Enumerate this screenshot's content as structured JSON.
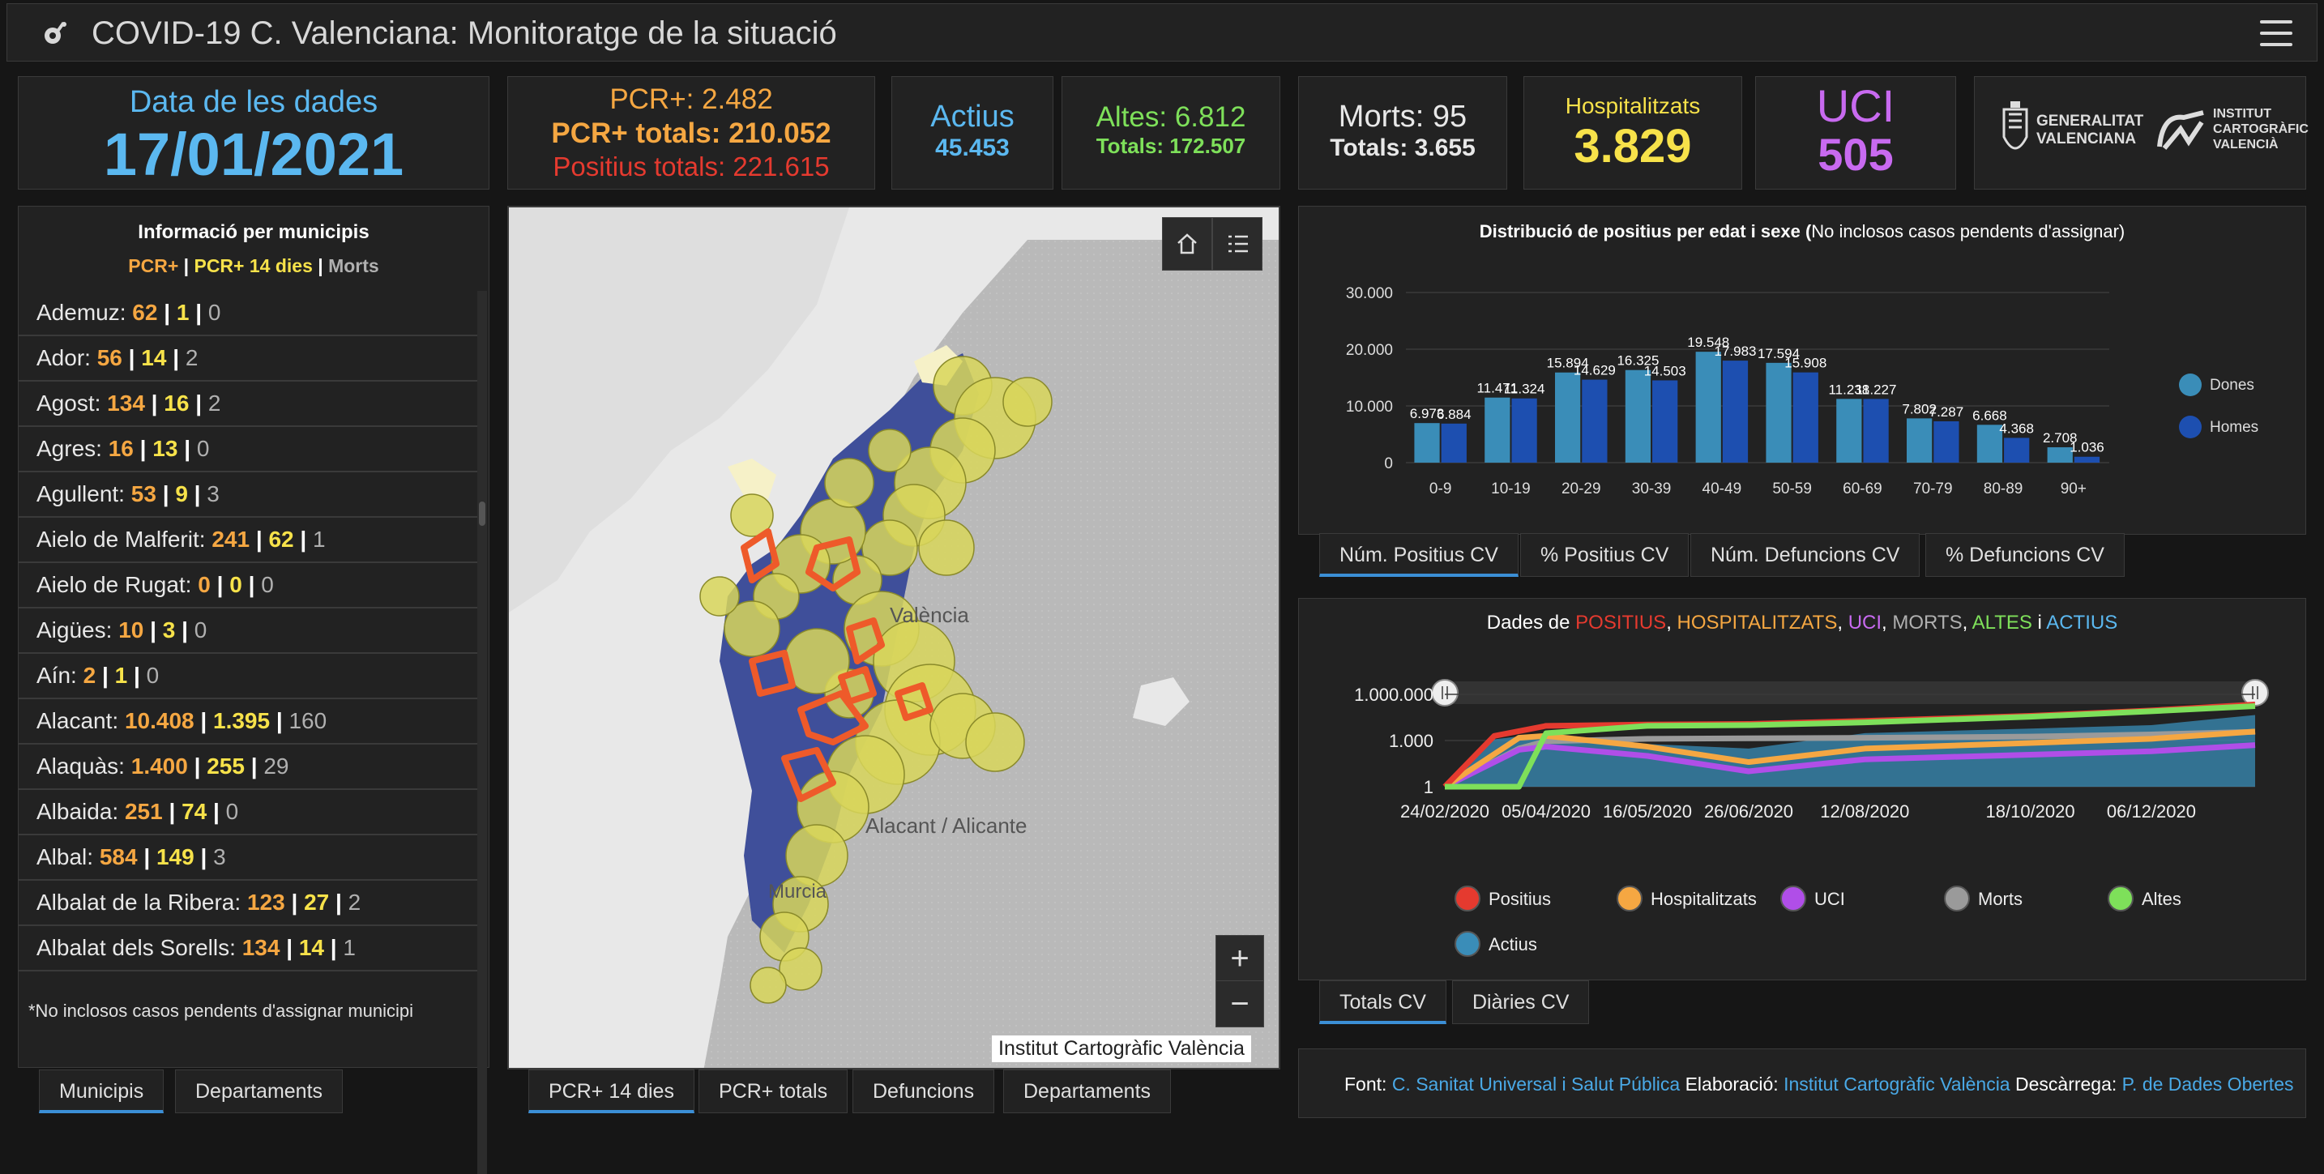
{
  "header": {
    "title": "COVID-19 C. Valenciana: Monitoratge de la situació",
    "logo_icon": "virus-icon",
    "menu_icon": "hamburger-menu-icon"
  },
  "date_card": {
    "label": "Data de les dades",
    "value": "17/01/2021"
  },
  "pcr_card": {
    "pcr": "PCR+: 2.482",
    "pcr_totals": "PCR+ totals: 210.052",
    "positius_totals": "Positius totals: 221.615"
  },
  "actius_card": {
    "label": "Actius",
    "value": "45.453"
  },
  "altes_card": {
    "label": "Altes: 6.812",
    "totals": "Totals: 172.507"
  },
  "morts_card": {
    "label": "Morts: 95",
    "totals": "Totals: 3.655"
  },
  "hosp_card": {
    "label": "Hospitalitzats",
    "value": "3.829"
  },
  "uci_card": {
    "label": "UCI",
    "value": "505"
  },
  "logos": {
    "gva_line1": "GENERALITAT",
    "gva_line2": "VALENCIANA",
    "icv_line1": "INSTITUT",
    "icv_line2": "CARTOGRÀFIC",
    "icv_line3": "VALENCIÀ"
  },
  "municipis": {
    "title": "Informació per municipis",
    "legend_pcr": "PCR+",
    "legend_pcr14": "PCR+ 14 dies",
    "legend_morts": "Morts",
    "sep": "|",
    "footnote": "*No inclosos casos pendents d'assignar municipi",
    "rows": [
      {
        "name": "Ademuz:",
        "pcr": "62",
        "pcr14": "1",
        "morts": "0"
      },
      {
        "name": "Ador:",
        "pcr": "56",
        "pcr14": "14",
        "morts": "2"
      },
      {
        "name": "Agost:",
        "pcr": "134",
        "pcr14": "16",
        "morts": "2"
      },
      {
        "name": "Agres:",
        "pcr": "16",
        "pcr14": "13",
        "morts": "0"
      },
      {
        "name": "Agullent:",
        "pcr": "53",
        "pcr14": "9",
        "morts": "3"
      },
      {
        "name": "Aielo de Malferit:",
        "pcr": "241",
        "pcr14": "62",
        "morts": "1"
      },
      {
        "name": "Aielo de Rugat:",
        "pcr": "0",
        "pcr14": "0",
        "morts": "0"
      },
      {
        "name": "Aigües:",
        "pcr": "10",
        "pcr14": "3",
        "morts": "0"
      },
      {
        "name": "Aín:",
        "pcr": "2",
        "pcr14": "1",
        "morts": "0"
      },
      {
        "name": "Alacant:",
        "pcr": "10.408",
        "pcr14": "1.395",
        "morts": "160"
      },
      {
        "name": "Alaquàs:",
        "pcr": "1.400",
        "pcr14": "255",
        "morts": "29"
      },
      {
        "name": "Albaida:",
        "pcr": "251",
        "pcr14": "74",
        "morts": "0"
      },
      {
        "name": "Albal:",
        "pcr": "584",
        "pcr14": "149",
        "morts": "3"
      },
      {
        "name": "Albalat de la Ribera:",
        "pcr": "123",
        "pcr14": "27",
        "morts": "2"
      },
      {
        "name": "Albalat dels Sorells:",
        "pcr": "134",
        "pcr14": "14",
        "morts": "1"
      }
    ]
  },
  "municipis_tabs": [
    "Municipis",
    "Departaments"
  ],
  "map": {
    "labels": {
      "valencia": "València",
      "alacant": "Alacant / Alicante",
      "murcia": "Murcia"
    },
    "attribution": "Institut Cartogràfic València",
    "home_icon": "home-icon",
    "legend_icon": "legend-list-icon",
    "zoom_in": "+",
    "zoom_out": "−"
  },
  "map_tabs": [
    "PCR+ 14 dies",
    "PCR+ totals",
    "Defuncions",
    "Departaments"
  ],
  "age_chart": {
    "title_bold": "Distribució de positius per edat i sexe (",
    "title_rest": "No inclosos casos pendents d'assignar)",
    "legend": [
      "Dones",
      "Homes"
    ],
    "tabs": [
      "Núm. Positius CV",
      "% Positius CV",
      "Núm. Defuncions CV",
      "% Defuncions CV"
    ]
  },
  "time_chart": {
    "title_prefix": "Dades de ",
    "t_positius": "POSITIUS",
    "t_hosp": "HOSPITALITZATS",
    "t_uci": "UCI",
    "t_morts": "MORTS",
    "t_altes": "ALTES",
    "t_i": " i ",
    "t_actius": "ACTIUS",
    "comma": ", ",
    "legend": [
      "Positius",
      "Hospitalitzats",
      "UCI",
      "Morts",
      "Altes",
      "Actius"
    ],
    "tabs": [
      "Totals CV",
      "Diàries CV"
    ]
  },
  "footer": {
    "font_label": "Font:",
    "font_value": "C. Sanitat Universal i Salut Pública",
    "elab_label": "Elaboració:",
    "elab_value": "Institut Cartogràfic València",
    "desc_label": "Descàrrega:",
    "desc_value": "P. de Dades Obertes"
  },
  "colors": {
    "dones": "#3a8db8",
    "homes": "#1d4fb0",
    "positius": "#e53a2f",
    "hospitalitzats": "#f5a742",
    "uci": "#b04ee8",
    "morts": "#9a9a9a",
    "altes": "#7ee05a",
    "actius": "#3a8db8"
  },
  "chart_data": [
    {
      "type": "bar",
      "title": "Distribució de positius per edat i sexe (No inclosos casos pendents d'assignar)",
      "categories": [
        "0-9",
        "10-19",
        "20-29",
        "30-39",
        "40-49",
        "50-59",
        "60-69",
        "70-79",
        "80-89",
        "90+"
      ],
      "series": [
        {
          "name": "Dones",
          "values": [
            6973,
            11471,
            15894,
            16325,
            19548,
            17594,
            11238,
            7802,
            6668,
            2708
          ],
          "labels": [
            "6.973",
            "11.471",
            "15.894",
            "16.325",
            "19.548",
            "17.594",
            "11.238",
            "7.802",
            "6.668",
            "2.708"
          ]
        },
        {
          "name": "Homes",
          "values": [
            6884,
            11324,
            14629,
            14503,
            17983,
            15908,
            11227,
            7287,
            4368,
            1036
          ],
          "labels": [
            "6.884",
            "11.324",
            "14.629",
            "14.503",
            "17.983",
            "15.908",
            "11.227",
            "7.287",
            "4.368",
            "1.036"
          ]
        }
      ],
      "yticks": [
        0,
        10000,
        20000,
        30000
      ],
      "ytick_labels": [
        "0",
        "10.000",
        "20.000",
        "30.000"
      ],
      "ylim": [
        0,
        30000
      ],
      "legend_position": "right",
      "grid": true
    },
    {
      "type": "area",
      "title": "Dades de POSITIUS, HOSPITALITZATS, UCI, MORTS, ALTES i ACTIUS",
      "x_tick_labels": [
        "24/02/2020",
        "05/04/2020",
        "16/05/2020",
        "26/06/2020",
        "12/08/2020",
        "18/10/2020",
        "06/12/2020"
      ],
      "xrange": [
        "24/02/2020",
        "17/01/2021"
      ],
      "yscale": "log",
      "yticks": [
        1,
        1000,
        1000000
      ],
      "ytick_labels": [
        "1",
        "1.000",
        "1.000.000"
      ],
      "series": [
        {
          "name": "Positius",
          "x": [
            "24/02/2020",
            "15/03/2020",
            "05/04/2020",
            "16/05/2020",
            "26/06/2020",
            "12/08/2020",
            "18/10/2020",
            "06/12/2020",
            "17/01/2021"
          ],
          "values": [
            1,
            2000,
            9000,
            11000,
            12000,
            19000,
            40000,
            90000,
            221615
          ]
        },
        {
          "name": "Hospitalitzats",
          "x": [
            "24/02/2020",
            "25/03/2020",
            "05/04/2020",
            "16/05/2020",
            "26/06/2020",
            "12/08/2020",
            "18/10/2020",
            "06/12/2020",
            "17/01/2021"
          ],
          "values": [
            1,
            1500,
            2000,
            400,
            40,
            300,
            700,
            1300,
            3829
          ]
        },
        {
          "name": "UCI",
          "x": [
            "24/02/2020",
            "25/03/2020",
            "05/04/2020",
            "16/05/2020",
            "26/06/2020",
            "12/08/2020",
            "18/10/2020",
            "06/12/2020",
            "17/01/2021"
          ],
          "values": [
            1,
            250,
            400,
            100,
            10,
            60,
            120,
            200,
            505
          ]
        },
        {
          "name": "Morts",
          "x": [
            "24/02/2020",
            "25/03/2020",
            "05/04/2020",
            "16/05/2020",
            "26/06/2020",
            "12/08/2020",
            "18/10/2020",
            "06/12/2020",
            "17/01/2021"
          ],
          "values": [
            1,
            300,
            900,
            1300,
            1400,
            1500,
            1800,
            2500,
            3655
          ]
        },
        {
          "name": "Altes",
          "x": [
            "24/02/2020",
            "25/03/2020",
            "05/04/2020",
            "16/05/2020",
            "26/06/2020",
            "12/08/2020",
            "18/10/2020",
            "06/12/2020",
            "17/01/2021"
          ],
          "values": [
            1,
            1,
            3000,
            9000,
            10000,
            15000,
            35000,
            80000,
            172507
          ]
        },
        {
          "name": "Actius",
          "x": [
            "24/02/2020",
            "15/03/2020",
            "05/04/2020",
            "16/05/2020",
            "26/06/2020",
            "12/08/2020",
            "18/10/2020",
            "06/12/2020",
            "17/01/2021"
          ],
          "values": [
            1,
            1200,
            3000,
            600,
            300,
            3000,
            6000,
            10000,
            45453
          ]
        }
      ],
      "legend_position": "bottom"
    }
  ]
}
